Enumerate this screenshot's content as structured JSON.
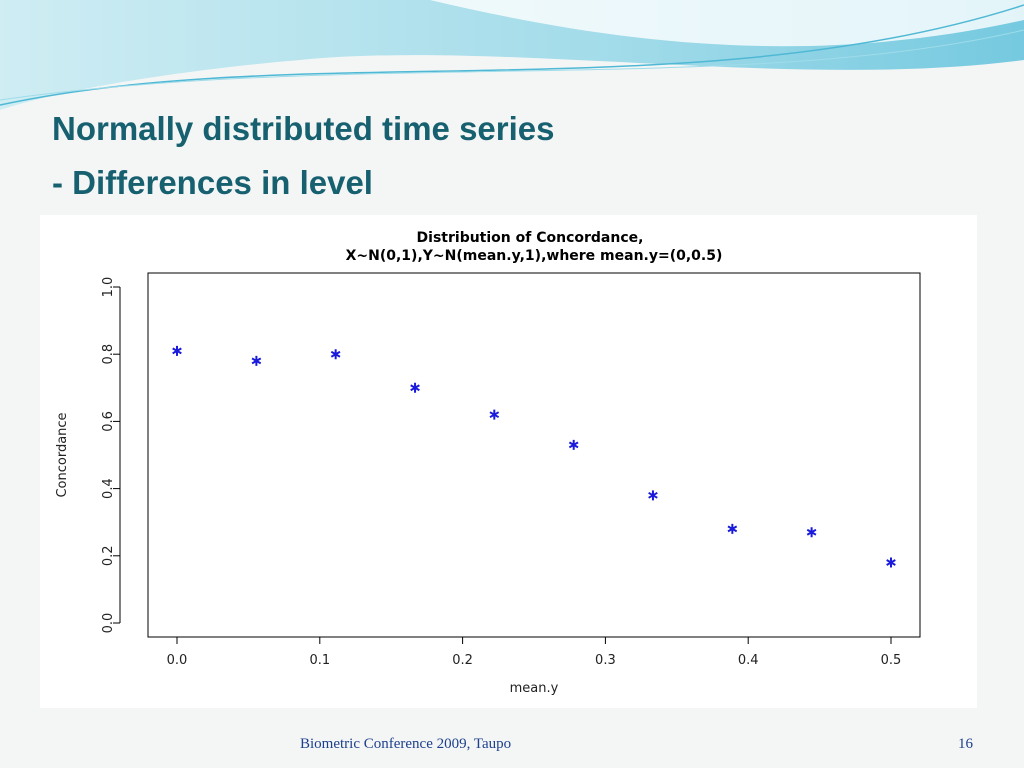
{
  "slide": {
    "title": "Normally distributed time series",
    "subtitle": "- Differences in level",
    "footer": "Biometric Conference 2009, Taupo",
    "page_number": "16"
  },
  "chart_data": {
    "type": "scatter",
    "title": "Distribution of Concordance,",
    "subtitle": "X~N(0,1),Y~N(mean.y,1),where mean.y=(0,0.5)",
    "x_label": "mean.y",
    "y_label": "Concordance",
    "x": [
      0,
      0.0556,
      0.1111,
      0.1667,
      0.2222,
      0.2778,
      0.3333,
      0.3889,
      0.4444,
      0.5
    ],
    "values": [
      0.81,
      0.78,
      0.8,
      0.7,
      0.62,
      0.53,
      0.38,
      0.28,
      0.27,
      0.18
    ],
    "color": "#1a1adc",
    "xlim": [
      0,
      0.5
    ],
    "xticks": [
      {
        "value": 0,
        "label": "0.0"
      },
      0.1,
      0.2,
      0.3,
      0.4,
      0.5
    ],
    "ylim": [
      0,
      1
    ],
    "yticks": [
      {
        "value": 0,
        "label": "0.0"
      },
      0.2,
      0.4,
      0.6,
      0.8,
      {
        "value": 1,
        "label": "1.0"
      }
    ]
  }
}
